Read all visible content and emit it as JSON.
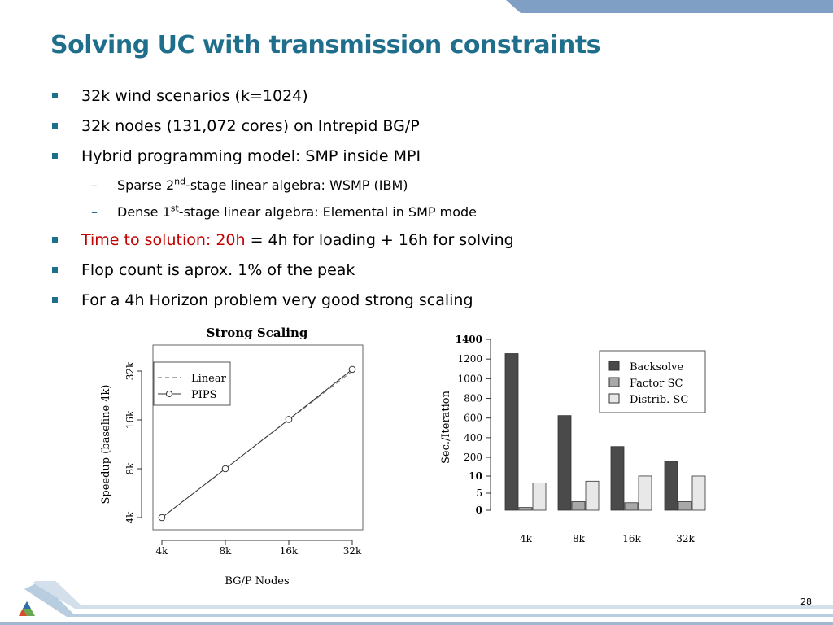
{
  "slide": {
    "title": "Solving UC with transmission constraints",
    "page_number": "28",
    "accent_color": "#1f6e8c",
    "highlight_color": "#c00000"
  },
  "bullets": {
    "b1": "32k wind scenarios (k=1024)",
    "b2": "32k nodes (131,072 cores) on Intrepid BG/P",
    "b3": "Hybrid programming model: SMP inside MPI",
    "s1_pre": "Sparse 2",
    "s1_sup": "nd",
    "s1_post": "-stage linear algebra: WSMP (IBM)",
    "s2_pre": "Dense 1",
    "s2_sup": "st",
    "s2_post": "-stage linear algebra: Elemental in SMP mode",
    "b4_red": "Time to solution: 20h",
    "b4_rest": " = 4h for loading + 16h for solving",
    "b5": "Flop count is aprox. 1% of the peak",
    "b6": "For a 4h Horizon problem very good strong scaling",
    "sub_marker": "–"
  },
  "chart_data": [
    {
      "type": "line",
      "title": "Strong Scaling",
      "xlabel": "BG/P Nodes",
      "ylabel": "Speedup (baseline 4k)",
      "x_ticks": [
        "4k",
        "8k",
        "16k",
        "32k"
      ],
      "y_ticks": [
        "4k",
        "8k",
        "16k",
        "32k"
      ],
      "x": [
        4,
        8,
        16,
        32
      ],
      "scale": "log2",
      "series": [
        {
          "name": "Linear",
          "style": "dashed",
          "values": [
            4,
            8,
            16,
            32
          ]
        },
        {
          "name": "PIPS",
          "style": "solid-circle",
          "values": [
            4,
            8,
            16.1,
            32.8
          ]
        }
      ],
      "legend": "top-left"
    },
    {
      "type": "bar",
      "ylabel": "Sec./Iteration",
      "categories": [
        "4k",
        "8k",
        "16k",
        "32k"
      ],
      "y_ticks": [
        "0",
        "5",
        "10",
        "200",
        "400",
        "600",
        "800",
        "1000",
        "1200",
        "1400"
      ],
      "y_axis": "broken: 0-10 linear, 10-1400 linear",
      "series": [
        {
          "name": "Backsolve",
          "color": "#4a4a4a",
          "values": [
            1255,
            625,
            310,
            160
          ]
        },
        {
          "name": "Factor SC",
          "color": "#a8a8a8",
          "values": [
            0.8,
            2.5,
            2.2,
            2.5
          ]
        },
        {
          "name": "Distrib. SC",
          "color": "#e8e8e8",
          "values": [
            8,
            8.5,
            10.5,
            10.2
          ]
        }
      ],
      "legend": "top-right"
    }
  ]
}
